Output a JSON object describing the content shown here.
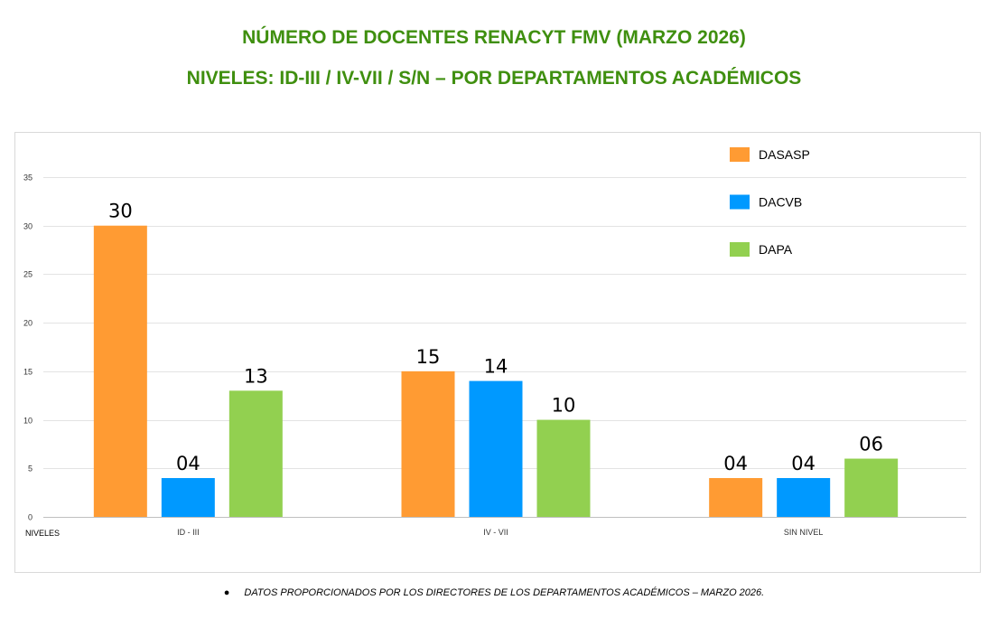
{
  "chart_data": {
    "type": "bar",
    "title": "NÚMERO DE DOCENTES RENACYT FMV (MARZO 2026)",
    "subtitle": "NIVELES: ID-III  /  IV-VII  /  S/N – POR DEPARTAMENTOS ACADÉMICOS",
    "xlabel": "NIVELES",
    "ylabel": "",
    "categories": [
      "ID - III",
      "IV - VII",
      "SIN NIVEL"
    ],
    "series": [
      {
        "name": "DASASP",
        "color": "#ff9b33",
        "values": [
          30,
          15,
          4
        ],
        "labels": [
          "30",
          "15",
          "04"
        ]
      },
      {
        "name": "DACVB",
        "color": "#0099ff",
        "values": [
          4,
          14,
          4
        ],
        "labels": [
          "04",
          "14",
          "04"
        ]
      },
      {
        "name": "DAPA",
        "color": "#92d050",
        "values": [
          13,
          10,
          6
        ],
        "labels": [
          "13",
          "10",
          "06"
        ]
      }
    ],
    "ylim": [
      0,
      35
    ],
    "yticks": [
      0,
      5,
      10,
      15,
      20,
      25,
      30,
      35
    ],
    "grid": true,
    "legend": "top-right"
  },
  "footnote": "DATOS PROPORCIONADOS POR LOS DIRECTORES DE LOS DEPARTAMENTOS ACADÉMICOS – MARZO 2026."
}
